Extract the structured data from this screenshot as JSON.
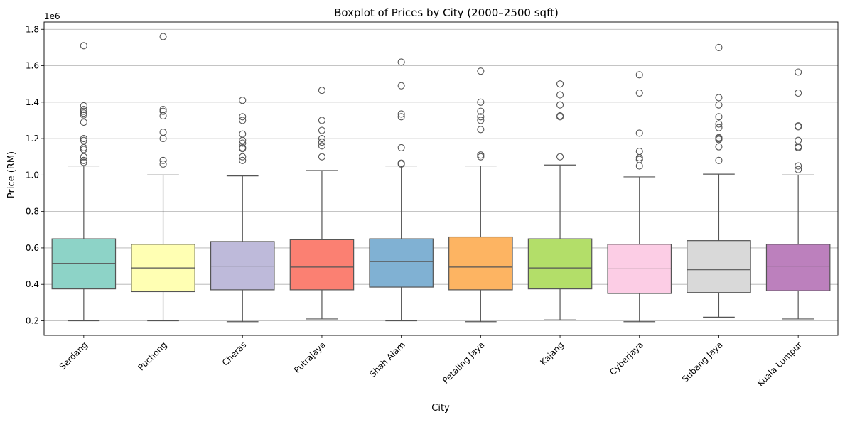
{
  "chart_data": {
    "type": "boxplot",
    "title": "Boxplot of Prices by City (2000–2500 sqft)",
    "xlabel": "City",
    "ylabel": "Price (RM)",
    "y_scale_label": "1e6",
    "ylim": [
      0.12,
      1.84
    ],
    "yticks": [
      0.2,
      0.4,
      0.6,
      0.8,
      1.0,
      1.2,
      1.4,
      1.6,
      1.8
    ],
    "ytick_labels": [
      "0.2",
      "0.4",
      "0.6",
      "0.8",
      "1.0",
      "1.2",
      "1.4",
      "1.6",
      "1.8"
    ],
    "grid": "y",
    "categories": [
      "Serdang",
      "Puchong",
      "Cheras",
      "Putrajaya",
      "Shah Alam",
      "Petaling Jaya",
      "Kajang",
      "Cyberjaya",
      "Subang Jaya",
      "Kuala Lumpur"
    ],
    "boxes": [
      {
        "name": "Serdang",
        "color": "#8dd3c7",
        "whisker_low": 0.2,
        "q1": 0.375,
        "median": 0.515,
        "q3": 0.65,
        "whisker_high": 1.05,
        "outliers": [
          1.07,
          1.08,
          1.1,
          1.15,
          1.14,
          1.19,
          1.2,
          1.29,
          1.33,
          1.34,
          1.35,
          1.36,
          1.38,
          1.71
        ]
      },
      {
        "name": "Puchong",
        "color": "#ffffb3",
        "whisker_low": 0.2,
        "q1": 0.36,
        "median": 0.49,
        "q3": 0.62,
        "whisker_high": 1.0,
        "outliers": [
          1.06,
          1.08,
          1.2,
          1.235,
          1.325,
          1.35,
          1.36,
          1.76
        ]
      },
      {
        "name": "Cheras",
        "color": "#bebada",
        "whisker_low": 0.195,
        "q1": 0.37,
        "median": 0.5,
        "q3": 0.635,
        "whisker_high": 0.995,
        "outliers": [
          1.08,
          1.1,
          1.145,
          1.15,
          1.175,
          1.19,
          1.225,
          1.3,
          1.32,
          1.41
        ]
      },
      {
        "name": "Putrajaya",
        "color": "#fb8072",
        "whisker_low": 0.21,
        "q1": 0.37,
        "median": 0.495,
        "q3": 0.645,
        "whisker_high": 1.025,
        "outliers": [
          1.1,
          1.16,
          1.18,
          1.2,
          1.245,
          1.3,
          1.465
        ]
      },
      {
        "name": "Shah Alam",
        "color": "#80b1d3",
        "whisker_low": 0.2,
        "q1": 0.385,
        "median": 0.525,
        "q3": 0.65,
        "whisker_high": 1.05,
        "outliers": [
          1.06,
          1.065,
          1.15,
          1.32,
          1.335,
          1.49,
          1.62
        ]
      },
      {
        "name": "Petaling Jaya",
        "color": "#fdb462",
        "whisker_low": 0.195,
        "q1": 0.37,
        "median": 0.495,
        "q3": 0.66,
        "whisker_high": 1.05,
        "outliers": [
          1.1,
          1.11,
          1.25,
          1.3,
          1.32,
          1.35,
          1.4,
          1.57
        ]
      },
      {
        "name": "Kajang",
        "color": "#b3de69",
        "whisker_low": 0.205,
        "q1": 0.375,
        "median": 0.49,
        "q3": 0.65,
        "whisker_high": 1.055,
        "outliers": [
          1.1,
          1.32,
          1.325,
          1.385,
          1.44,
          1.5
        ]
      },
      {
        "name": "Cyberjaya",
        "color": "#fccde5",
        "whisker_low": 0.195,
        "q1": 0.35,
        "median": 0.485,
        "q3": 0.62,
        "whisker_high": 0.99,
        "outliers": [
          1.05,
          1.085,
          1.095,
          1.13,
          1.23,
          1.45,
          1.55
        ]
      },
      {
        "name": "Subang Jaya",
        "color": "#d9d9d9",
        "whisker_low": 0.22,
        "q1": 0.355,
        "median": 0.48,
        "q3": 0.64,
        "whisker_high": 1.005,
        "outliers": [
          1.08,
          1.155,
          1.195,
          1.2,
          1.205,
          1.26,
          1.28,
          1.32,
          1.385,
          1.425,
          1.7
        ]
      },
      {
        "name": "Kuala Lumpur",
        "color": "#bc80bd",
        "whisker_low": 0.21,
        "q1": 0.365,
        "median": 0.5,
        "q3": 0.62,
        "whisker_high": 1.0,
        "outliers": [
          1.03,
          1.05,
          1.15,
          1.155,
          1.19,
          1.265,
          1.27,
          1.45,
          1.565
        ]
      }
    ]
  }
}
